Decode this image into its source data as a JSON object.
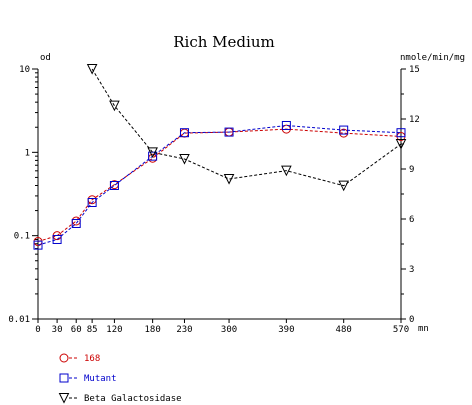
{
  "chart_data": {
    "type": "line",
    "title": "Rich Medium",
    "xlabel": "mn",
    "ylabel_left": "od",
    "ylabel_right": "nmole/min/mg",
    "x_ticks": [
      0,
      30,
      60,
      85,
      120,
      180,
      230,
      300,
      390,
      480,
      570
    ],
    "x_tick_labels": [
      "0",
      "30",
      "60",
      "85",
      "120",
      "180",
      "230",
      "300",
      "390",
      "480",
      "570"
    ],
    "xlim": [
      0,
      570
    ],
    "left_axis": {
      "scale": "log",
      "range": [
        0.01,
        10
      ],
      "ticks": [
        0.01,
        0.1,
        1,
        10
      ],
      "tick_labels": [
        "0.01",
        "0.1",
        "1",
        "10"
      ]
    },
    "right_axis": {
      "scale": "linear",
      "range": [
        0,
        15
      ],
      "ticks": [
        0,
        3,
        6,
        9,
        12,
        15
      ],
      "tick_labels": [
        "0",
        "3",
        "6",
        "9",
        "12",
        "15"
      ]
    },
    "grid": false,
    "legend_position": "bottom-left",
    "series": [
      {
        "name": "168",
        "axis": "left",
        "color": "#cc0000",
        "marker": "circle",
        "x": [
          0,
          30,
          60,
          85,
          120,
          180,
          230,
          300,
          390,
          480,
          570
        ],
        "y": [
          0.085,
          0.1,
          0.15,
          0.27,
          0.41,
          0.85,
          1.7,
          1.75,
          1.9,
          1.7,
          1.55
        ]
      },
      {
        "name": "Mutant",
        "axis": "left",
        "color": "#0000cc",
        "marker": "square",
        "x": [
          0,
          30,
          60,
          85,
          120,
          180,
          230,
          300,
          390,
          480,
          570
        ],
        "y": [
          0.077,
          0.09,
          0.14,
          0.25,
          0.4,
          0.9,
          1.72,
          1.75,
          2.1,
          1.85,
          1.72
        ]
      },
      {
        "name": "Beta Galactosidase",
        "axis": "right",
        "color": "#000000",
        "marker": "triangle-down",
        "x": [
          85,
          120,
          180,
          230,
          300,
          390,
          480,
          570
        ],
        "y": [
          15,
          12.8,
          10,
          9.6,
          8.4,
          8.9,
          8.0,
          10.5
        ]
      }
    ]
  }
}
